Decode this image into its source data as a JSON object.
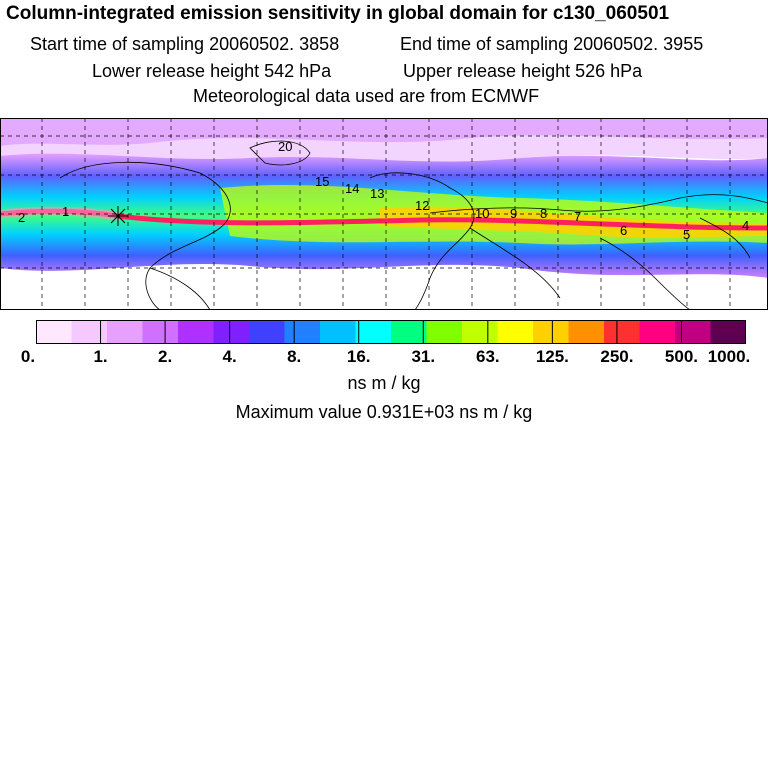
{
  "header": {
    "title": "Column-integrated emission sensitivity in global domain for c130_060501",
    "start_time": "Start time of sampling 20060502.  3858",
    "end_time": "End time of sampling 20060502.  3955",
    "lower_height": "Lower release height  542 hPa",
    "upper_height": "Upper release height  526 hPa",
    "met_data": "Meteorological data used are from ECMWF"
  },
  "map": {
    "contour_labels": [
      "20",
      "15",
      "14",
      "13",
      "12",
      "10",
      "9",
      "8",
      "7",
      "6",
      "5",
      "4",
      "2",
      "1"
    ],
    "release_marker": "star-marker"
  },
  "colorbar": {
    "ticks": [
      "0.",
      "1.",
      "2.",
      "4.",
      "8.",
      "16.",
      "31.",
      "63.",
      "125.",
      "250.",
      "500.",
      "1000."
    ],
    "colors": [
      "#ffe8ff",
      "#f5c8ff",
      "#e8a0ff",
      "#d070ff",
      "#b030ff",
      "#8020ff",
      "#4040ff",
      "#2080ff",
      "#00c0ff",
      "#00ffff",
      "#00ff80",
      "#80ff00",
      "#c0ff00",
      "#ffff00",
      "#ffd000",
      "#ff9000",
      "#ff3030",
      "#ff0080",
      "#c00080",
      "#600050"
    ],
    "units": "ns m / kg",
    "max_value": "Maximum value  0.931E+03 ns m / kg"
  }
}
